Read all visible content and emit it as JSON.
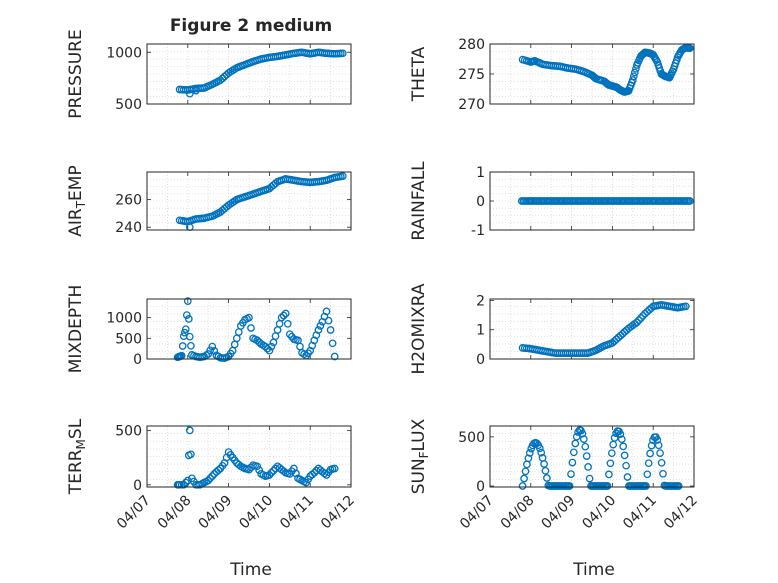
{
  "figure_title": "Figure 2 medium",
  "shared_x_label": "Time",
  "x_tick_labels": [
    "04/07",
    "04/08",
    "04/09",
    "04/10",
    "04/11",
    "04/12"
  ],
  "colors": {
    "marker": "#0072BD",
    "axis": "#262626",
    "grid": "#d9d9d9",
    "background": "#ffffff"
  },
  "chart_data": [
    {
      "type": "scatter",
      "ylabel": "PRESSURE",
      "title": "Figure 2 medium",
      "xlim": [
        0,
        5
      ],
      "ylim": [
        500,
        1080
      ],
      "yticks": [
        500,
        1000
      ],
      "series": [
        {
          "name": "PRESSURE",
          "kind": "trend",
          "points": [
            [
              0.8,
              640
            ],
            [
              1.0,
              635
            ],
            [
              1.2,
              650
            ],
            [
              1.4,
              655
            ],
            [
              1.6,
              690
            ],
            [
              1.8,
              730
            ],
            [
              2.0,
              800
            ],
            [
              2.2,
              850
            ],
            [
              2.4,
              880
            ],
            [
              2.6,
              910
            ],
            [
              2.8,
              935
            ],
            [
              3.0,
              950
            ],
            [
              3.2,
              960
            ],
            [
              3.4,
              975
            ],
            [
              3.6,
              990
            ],
            [
              3.8,
              1000
            ],
            [
              4.0,
              985
            ],
            [
              4.2,
              1000
            ],
            [
              4.4,
              990
            ],
            [
              4.6,
              985
            ],
            [
              4.8,
              990
            ]
          ],
          "outliers": [
            [
              1.05,
              600
            ],
            [
              1.2,
              630
            ]
          ]
        }
      ]
    },
    {
      "type": "scatter",
      "ylabel": "THETA",
      "xlim": [
        0,
        5
      ],
      "ylim": [
        270,
        280
      ],
      "yticks": [
        270,
        275,
        280
      ],
      "series": [
        {
          "name": "THETA",
          "kind": "trend",
          "points": [
            [
              0.8,
              277.4
            ],
            [
              1.0,
              277.0
            ],
            [
              1.1,
              277.2
            ],
            [
              1.3,
              276.6
            ],
            [
              1.5,
              276.4
            ],
            [
              1.7,
              276.3
            ],
            [
              1.9,
              276.0
            ],
            [
              2.1,
              275.8
            ],
            [
              2.3,
              275.4
            ],
            [
              2.5,
              274.8
            ],
            [
              2.6,
              274.2
            ],
            [
              2.8,
              273.8
            ],
            [
              2.9,
              273.2
            ],
            [
              3.0,
              273.0
            ],
            [
              3.1,
              272.8
            ],
            [
              3.2,
              272.3
            ],
            [
              3.3,
              272.0
            ],
            [
              3.4,
              272.2
            ],
            [
              3.5,
              274.0
            ],
            [
              3.6,
              276.5
            ],
            [
              3.7,
              278.0
            ],
            [
              3.8,
              278.6
            ],
            [
              3.9,
              278.5
            ],
            [
              4.0,
              278.2
            ],
            [
              4.1,
              277.0
            ],
            [
              4.2,
              275.0
            ],
            [
              4.3,
              274.6
            ],
            [
              4.4,
              274.4
            ],
            [
              4.5,
              275.8
            ],
            [
              4.6,
              277.8
            ],
            [
              4.7,
              279.0
            ],
            [
              4.8,
              279.4
            ],
            [
              4.9,
              279.3
            ]
          ],
          "outliers": []
        }
      ]
    },
    {
      "type": "scatter",
      "ylabel": "AIR_TEMP",
      "xlim": [
        0,
        5
      ],
      "ylim": [
        238,
        280
      ],
      "yticks": [
        240,
        260
      ],
      "series": [
        {
          "name": "AIR_TEMP",
          "kind": "trend",
          "points": [
            [
              0.8,
              245
            ],
            [
              1.0,
              244
            ],
            [
              1.2,
              246
            ],
            [
              1.4,
              246.5
            ],
            [
              1.6,
              248
            ],
            [
              1.8,
              251
            ],
            [
              2.0,
              256
            ],
            [
              2.2,
              260
            ],
            [
              2.4,
              262
            ],
            [
              2.6,
              264
            ],
            [
              2.8,
              266
            ],
            [
              3.0,
              268
            ],
            [
              3.2,
              273
            ],
            [
              3.4,
              275
            ],
            [
              3.6,
              274
            ],
            [
              3.8,
              273
            ],
            [
              4.0,
              272.5
            ],
            [
              4.2,
              273
            ],
            [
              4.4,
              274
            ],
            [
              4.6,
              276
            ],
            [
              4.8,
              277
            ]
          ],
          "outliers": [
            [
              1.05,
              240
            ]
          ]
        }
      ]
    },
    {
      "type": "scatter",
      "ylabel": "RAINFALL",
      "xlim": [
        0,
        5
      ],
      "ylim": [
        -1,
        1
      ],
      "yticks": [
        -1,
        0,
        1
      ],
      "series": [
        {
          "name": "RAINFALL",
          "kind": "flat",
          "x_start": 0.78,
          "x_end": 4.92,
          "value": 0
        }
      ]
    },
    {
      "type": "scatter",
      "ylabel": "MIXDEPTH",
      "xlim": [
        0,
        5
      ],
      "ylim": [
        0,
        1450
      ],
      "yticks": [
        0,
        500,
        1000
      ],
      "series": [
        {
          "name": "MIXDEPTH",
          "kind": "cycle",
          "points": [
            [
              0.75,
              40
            ],
            [
              0.8,
              60
            ],
            [
              0.85,
              80
            ],
            [
              0.9,
              550
            ],
            [
              0.95,
              720
            ],
            [
              1.0,
              1400
            ],
            [
              1.05,
              540
            ],
            [
              1.1,
              100
            ],
            [
              1.2,
              60
            ],
            [
              1.3,
              40
            ],
            [
              1.4,
              60
            ],
            [
              1.5,
              120
            ],
            [
              1.6,
              300
            ],
            [
              1.7,
              90
            ],
            [
              1.8,
              30
            ],
            [
              1.9,
              20
            ],
            [
              2.0,
              60
            ],
            [
              2.1,
              200
            ],
            [
              2.2,
              500
            ],
            [
              2.3,
              800
            ],
            [
              2.4,
              950
            ],
            [
              2.5,
              1000
            ],
            [
              2.6,
              500
            ],
            [
              2.7,
              450
            ],
            [
              2.8,
              360
            ],
            [
              2.9,
              300
            ],
            [
              3.0,
              200
            ],
            [
              3.1,
              400
            ],
            [
              3.2,
              700
            ],
            [
              3.3,
              1000
            ],
            [
              3.4,
              1100
            ],
            [
              3.5,
              600
            ],
            [
              3.6,
              480
            ],
            [
              3.7,
              450
            ],
            [
              3.8,
              150
            ],
            [
              3.9,
              80
            ],
            [
              4.0,
              200
            ],
            [
              4.1,
              450
            ],
            [
              4.2,
              700
            ],
            [
              4.3,
              900
            ],
            [
              4.4,
              1150
            ],
            [
              4.5,
              700
            ],
            [
              4.6,
              60
            ]
          ]
        }
      ]
    },
    {
      "type": "scatter",
      "ylabel": "H2OMIXRA",
      "xlim": [
        0,
        5
      ],
      "ylim": [
        0,
        2.05
      ],
      "yticks": [
        0,
        1,
        2
      ],
      "series": [
        {
          "name": "H2OMIXRA",
          "kind": "trend",
          "points": [
            [
              0.8,
              0.38
            ],
            [
              1.0,
              0.35
            ],
            [
              1.2,
              0.3
            ],
            [
              1.4,
              0.25
            ],
            [
              1.6,
              0.2
            ],
            [
              1.8,
              0.2
            ],
            [
              2.0,
              0.2
            ],
            [
              2.2,
              0.2
            ],
            [
              2.4,
              0.2
            ],
            [
              2.6,
              0.3
            ],
            [
              2.8,
              0.45
            ],
            [
              3.0,
              0.55
            ],
            [
              3.2,
              0.8
            ],
            [
              3.4,
              1.05
            ],
            [
              3.6,
              1.25
            ],
            [
              3.8,
              1.55
            ],
            [
              4.0,
              1.8
            ],
            [
              4.2,
              1.85
            ],
            [
              4.4,
              1.8
            ],
            [
              4.6,
              1.75
            ],
            [
              4.8,
              1.8
            ]
          ],
          "outliers": []
        }
      ]
    },
    {
      "type": "scatter",
      "ylabel": "TERR_MSL",
      "xlim": [
        0,
        5
      ],
      "ylim": [
        -20,
        540
      ],
      "yticks": [
        0,
        500
      ],
      "series": [
        {
          "name": "TERR_MSL",
          "kind": "cycle",
          "points": [
            [
              0.75,
              0
            ],
            [
              0.8,
              0
            ],
            [
              0.9,
              0
            ],
            [
              1.0,
              40
            ],
            [
              1.05,
              500
            ],
            [
              1.1,
              60
            ],
            [
              1.2,
              0
            ],
            [
              1.3,
              0
            ],
            [
              1.4,
              20
            ],
            [
              1.5,
              40
            ],
            [
              1.6,
              80
            ],
            [
              1.7,
              120
            ],
            [
              1.8,
              150
            ],
            [
              1.9,
              200
            ],
            [
              2.0,
              300
            ],
            [
              2.1,
              250
            ],
            [
              2.2,
              200
            ],
            [
              2.3,
              170
            ],
            [
              2.4,
              150
            ],
            [
              2.5,
              140
            ],
            [
              2.6,
              180
            ],
            [
              2.7,
              170
            ],
            [
              2.8,
              100
            ],
            [
              2.9,
              80
            ],
            [
              3.0,
              90
            ],
            [
              3.1,
              130
            ],
            [
              3.2,
              170
            ],
            [
              3.3,
              140
            ],
            [
              3.4,
              110
            ],
            [
              3.5,
              100
            ],
            [
              3.6,
              150
            ],
            [
              3.7,
              60
            ],
            [
              3.8,
              40
            ],
            [
              3.9,
              20
            ],
            [
              4.0,
              80
            ],
            [
              4.1,
              110
            ],
            [
              4.2,
              150
            ],
            [
              4.3,
              120
            ],
            [
              4.4,
              90
            ],
            [
              4.5,
              140
            ],
            [
              4.6,
              150
            ]
          ]
        }
      ]
    },
    {
      "type": "scatter",
      "ylabel": "SUN_FLUX",
      "xlim": [
        0,
        5
      ],
      "ylim": [
        -10,
        610
      ],
      "yticks": [
        0,
        500
      ],
      "series": [
        {
          "name": "SUN_FLUX",
          "kind": "diurnal",
          "peaks": [
            [
              1.55,
              440
            ],
            [
              2.4,
              570
            ],
            [
              3.35,
              560
            ],
            [
              4.35,
              500
            ]
          ],
          "troughs": [
            0.8,
            1.95,
            2.88,
            3.82
          ]
        }
      ]
    }
  ]
}
